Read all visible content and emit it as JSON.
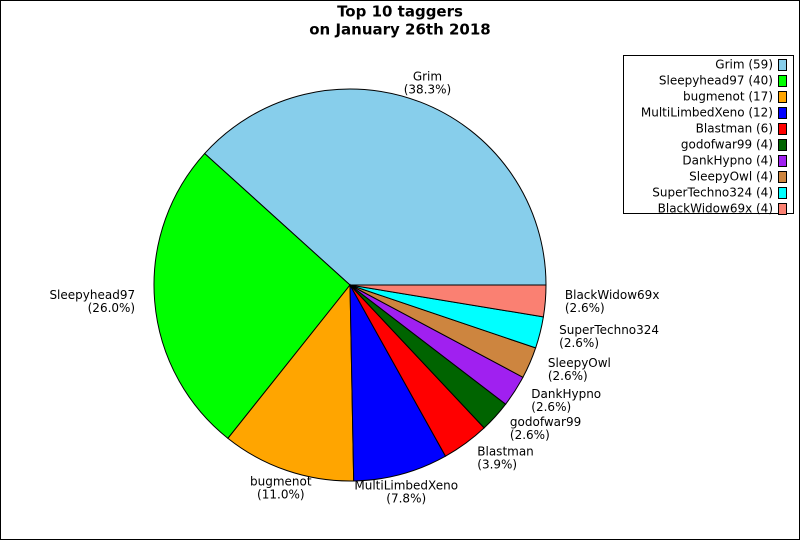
{
  "chart_data": {
    "type": "pie",
    "title": "Top 10 taggers",
    "subtitle": "on January 26th 2018",
    "categories": [
      "Grim",
      "Sleepyhead97",
      "bugmenot",
      "MultiLimbedXeno",
      "Blastman",
      "godofwar99",
      "DankHypno",
      "SleepyOwl",
      "SuperTechno324",
      "BlackWidow69x"
    ],
    "values": [
      38.3,
      26.0,
      11.0,
      7.8,
      3.9,
      2.6,
      2.6,
      2.6,
      2.6,
      2.6
    ],
    "value_labels": [
      "(38.3%)",
      "(26.0%)",
      "(11.0%)",
      "(7.8%)",
      "(3.9%)",
      "(2.6%)",
      "(2.6%)",
      "(2.6%)",
      "(2.6%)",
      "(2.6%)"
    ],
    "legend": [
      "Grim (59)",
      "Sleepyhead97 (40)",
      "bugmenot (17)",
      "MultiLimbedXeno (12)",
      "Blastman (6)",
      "godofwar99 (4)",
      "DankHypno (4)",
      "SleepyOwl (4)",
      "SuperTechno324 (4)",
      "BlackWidow69x (4)"
    ],
    "colors": [
      "#87ceeb",
      "#00ff00",
      "#ffa500",
      "#0000ff",
      "#ff0000",
      "#006400",
      "#a020f0",
      "#cd853f",
      "#00ffff",
      "#fa8072"
    ],
    "legend_position": "upper right"
  }
}
